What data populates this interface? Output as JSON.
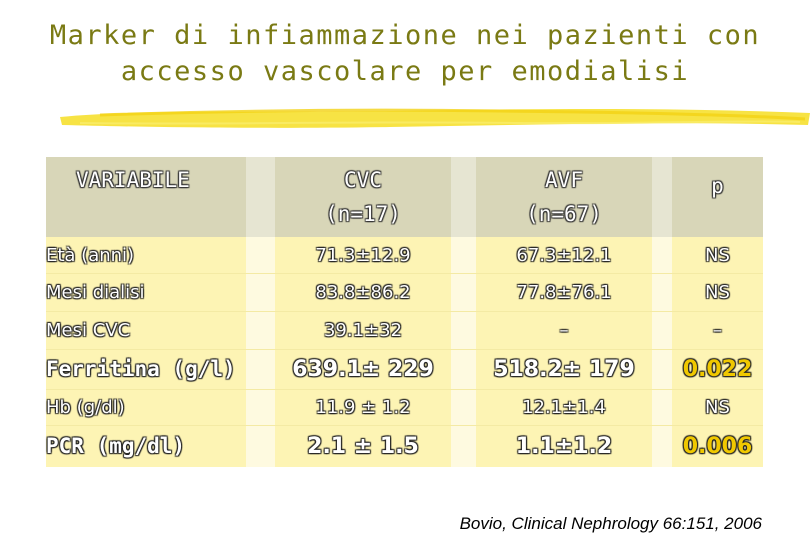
{
  "title": {
    "line1": "Marker di infiammazione nei pazienti con",
    "line2": "accesso vascolare per emodialisi"
  },
  "table": {
    "headers": {
      "variable": "VARIABILE",
      "cvc_name": "CVC",
      "cvc_n": "(n=17)",
      "avf_name": "AVF",
      "avf_n": "(n=67)",
      "p": "p"
    },
    "rows": [
      {
        "label": "Età (anni)",
        "cvc": "71.3±12.9",
        "avf": "67.3±12.1",
        "p": "NS",
        "style": "small",
        "highlight": false
      },
      {
        "label": "Mesi dialisi",
        "cvc": "83.8±86.2",
        "avf": "77.8±76.1",
        "p": "NS",
        "style": "small",
        "highlight": false
      },
      {
        "label": "Mesi CVC",
        "cvc": "39.1±32",
        "avf": "–",
        "p": "–",
        "style": "small",
        "highlight": false
      },
      {
        "label": "Ferritina (g/l)",
        "cvc": "639.1± 229",
        "avf": "518.2± 179",
        "p": "0.022",
        "style": "large",
        "highlight": true
      },
      {
        "label": "Hb (g/dl)",
        "cvc": "11.9 ± 1.2",
        "avf": "12.1±1.4",
        "p": "NS",
        "style": "small",
        "highlight": false
      },
      {
        "label": "PCR (mg/dl)",
        "cvc": "2.1 ± 1.5",
        "avf": "1.1±1.2",
        "p": "0.006",
        "style": "large",
        "highlight": true
      }
    ]
  },
  "citation": "Bovio, Clinical Nephrology 66:151, 2006",
  "colors": {
    "title": "#7a7a14",
    "header_bg": "#d8d6b8",
    "body_bg": "#fdf4b4",
    "significant_p": "#f0c800",
    "brush": "#f7e23a"
  }
}
